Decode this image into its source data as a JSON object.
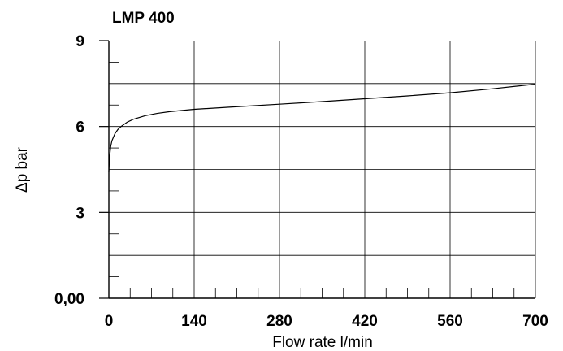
{
  "chart_data": {
    "type": "line",
    "title": "LMP 400",
    "xlabel": "Flow rate l/min",
    "ylabel": "Δp bar",
    "xlim": [
      0,
      700
    ],
    "ylim": [
      0,
      9
    ],
    "x_ticks": [
      0,
      140,
      280,
      420,
      560,
      700
    ],
    "x_tick_labels": [
      "0",
      "140",
      "280",
      "420",
      "560",
      "700"
    ],
    "y_ticks": [
      0,
      3,
      6,
      9
    ],
    "y_tick_labels": [
      "0,00",
      "3",
      "6",
      "9"
    ],
    "grid": true,
    "legend": "none",
    "line_color": "#000000",
    "series": [
      {
        "x": [
          0,
          1,
          3,
          5,
          10,
          15,
          20,
          30,
          40,
          60,
          80,
          100,
          140,
          200,
          280,
          350,
          420,
          490,
          560,
          630,
          700
        ],
        "y": [
          4.4,
          4.9,
          5.3,
          5.5,
          5.75,
          5.9,
          6.0,
          6.15,
          6.25,
          6.38,
          6.46,
          6.52,
          6.6,
          6.68,
          6.78,
          6.87,
          6.97,
          7.07,
          7.18,
          7.32,
          7.48
        ]
      }
    ]
  }
}
